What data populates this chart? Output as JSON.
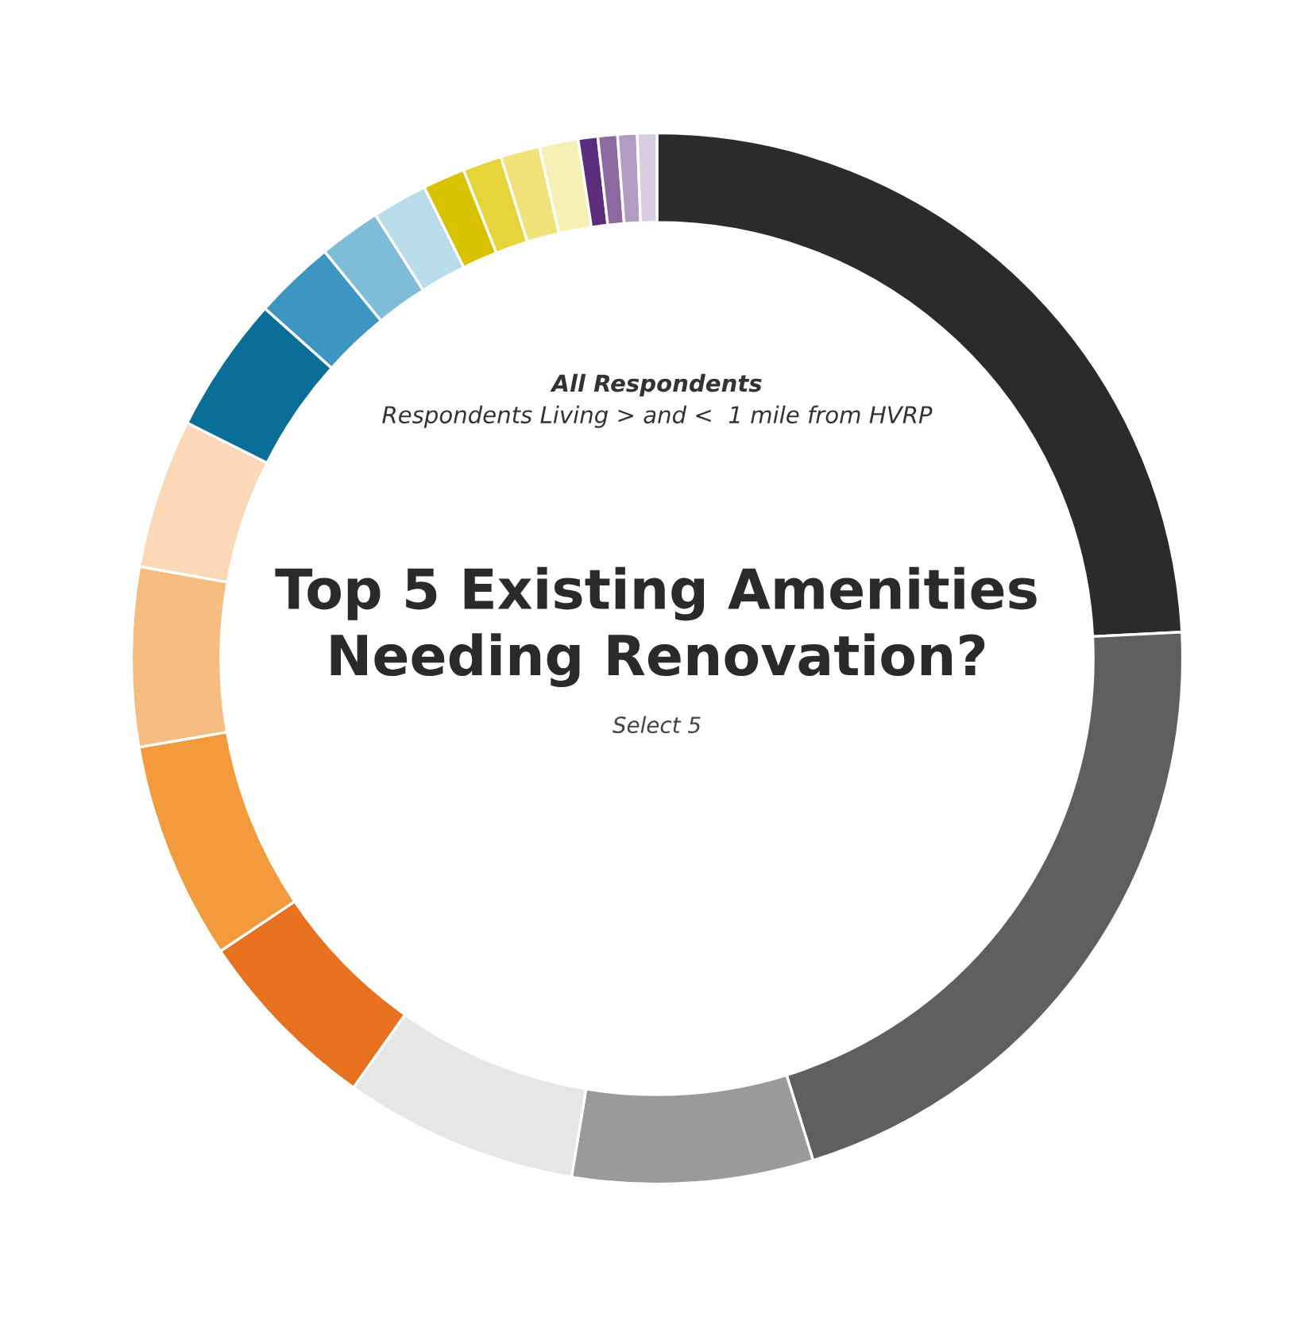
{
  "chart_data": {
    "type": "donut",
    "title": "Top 5 Existing Amenities\nNeeding Renovation?",
    "subtitle": "Select 5",
    "annotations": [
      "All Respondents",
      "Respondents Living > and <  1 mile from HVRP"
    ],
    "categories": [
      null,
      null,
      null,
      null,
      null,
      null,
      null,
      null,
      null,
      null,
      null,
      null,
      null,
      null,
      null,
      null,
      null,
      null,
      null,
      null
    ],
    "values": [
      24.2,
      21.0,
      7.4,
      7.2,
      5.8,
      6.7,
      5.5,
      4.6,
      4.2,
      2.5,
      1.9,
      1.7,
      1.3,
      1.2,
      1.2,
      1.2,
      0.6,
      0.6,
      0.6,
      0.6
    ],
    "colors": [
      "#2b2b2b",
      "#5f5f5f",
      "#9a9a9a",
      "#e6e6e6",
      "#e8711f",
      "#f29a3c",
      "#f7bd80",
      "#fad8b8",
      "#0b6e99",
      "#3d96c2",
      "#7fbcd8",
      "#b9dcea",
      "#d9c300",
      "#e5d43a",
      "#efe37a",
      "#f6f0b4",
      "#5c2d7a",
      "#8c6aa0",
      "#b39cc3",
      "#d8cde0"
    ]
  }
}
